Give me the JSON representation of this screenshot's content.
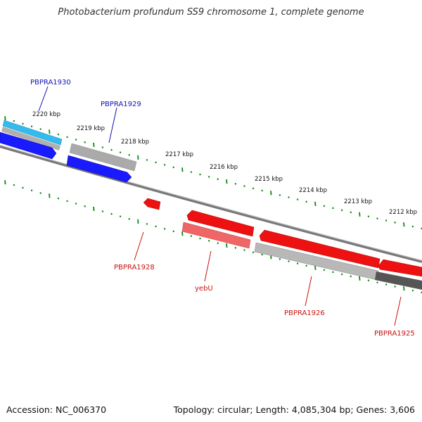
{
  "title": "Photobacterium profundum SS9 chromosome 1, complete genome",
  "footer": {
    "accession": "Accession: NC_006370",
    "topology": "Topology: circular; Length: 4,085,304 bp; Genes: 3,606"
  },
  "colors": {
    "forward_gene": "#1a1aff",
    "forward_gene_light": "#33bbee",
    "reverse_gene": "#ee1111",
    "reverse_gene_light": "#ee6666",
    "similarity_gray": "#aaaaaa",
    "similarity_dark": "#555555",
    "backbone": "#888888",
    "ticks": "#118811",
    "label_blue": "#1111bb",
    "label_red": "#cc1111"
  },
  "scale_labels": [
    "2220 kbp",
    "2219 kbp",
    "2218 kbp",
    "2217 kbp",
    "2216 kbp",
    "2215 kbp",
    "2214 kbp",
    "2213 kbp",
    "2212 kbp"
  ],
  "gene_labels": [
    "PBPRA1930",
    "PBPRA1929",
    "PBPRA1928",
    "yebU",
    "PBPRA1926",
    "PBPRA1925"
  ]
}
